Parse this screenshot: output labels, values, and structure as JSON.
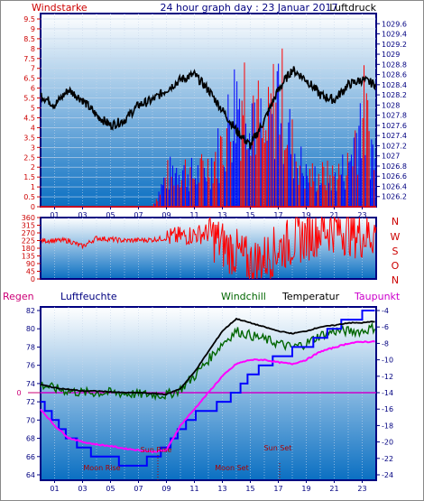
{
  "header": {
    "left_label": "Windstarke",
    "title": "24 hour graph day : 23 Januar 2017",
    "right_label": "Luftdruck"
  },
  "colors": {
    "frame": "#000080",
    "plot_top": "#ffffff",
    "plot_bottom": "#0a6fc2",
    "wind": "#ff0000",
    "gust_blue": "#0000ff",
    "pressure": "#000000",
    "temperature": "#000000",
    "windchill": "#006600",
    "dewpoint": "#ff00ff",
    "humidity": "#0000ff",
    "red_axis": "#cc0000",
    "blue_axis": "#000080"
  },
  "bottom_header": {
    "regen": "Regen",
    "luftfeuchte": "Luftfeuchte",
    "windchill": "Windchill",
    "temperatur": "Temperatur",
    "taupunkt": "Taupunkt"
  },
  "compass_labels": [
    "N",
    "W",
    "S",
    "O",
    "N"
  ],
  "annotations": {
    "sun_rise": "Sun Rise",
    "moon_rise": "Moon Rise",
    "moon_set": "Moon Set",
    "sun_set": "Sun Set"
  },
  "chart_data": [
    {
      "type": "line",
      "panel": "wind-pressure",
      "x_ticks": [
        "01",
        "03",
        "05",
        "07",
        "09",
        "11",
        "13",
        "15",
        "17",
        "19",
        "21",
        "23"
      ],
      "left_axis": {
        "ticks": [
          "0",
          "0.5",
          "1",
          "1.5",
          "2",
          "2.5",
          "3",
          "3.5",
          "4",
          "4.5",
          "5",
          "5.5",
          "6",
          "6.5",
          "7",
          "7.5",
          "8",
          "8.5",
          "9",
          "9.5"
        ],
        "ylim": [
          0,
          9.5
        ]
      },
      "right_axis": {
        "ticks": [
          "1026.2",
          "1026.4",
          "1026.6",
          "1026.8",
          "1027",
          "1027.2",
          "1027.4",
          "1027.6",
          "1027.8",
          "1028",
          "1028.2",
          "1028.4",
          "1028.6",
          "1028.8",
          "1029",
          "1029.2",
          "1029.4",
          "1029.6"
        ],
        "ylim": [
          1026.0,
          1029.8
        ]
      },
      "series": [
        {
          "name": "Luftdruck",
          "axis": "right",
          "x": [
            0,
            1,
            2,
            3,
            4,
            5,
            6,
            7,
            8,
            9,
            10,
            11,
            12,
            13,
            14,
            15,
            16,
            17,
            18,
            19,
            20,
            21,
            22,
            23,
            24
          ],
          "values": [
            1028.2,
            1028.0,
            1028.3,
            1028.1,
            1027.8,
            1027.6,
            1027.7,
            1028.0,
            1028.1,
            1028.3,
            1028.5,
            1028.6,
            1028.3,
            1027.9,
            1027.5,
            1027.2,
            1027.7,
            1028.3,
            1028.7,
            1028.5,
            1028.2,
            1028.1,
            1028.4,
            1028.5,
            1028.4
          ]
        },
        {
          "name": "Windstarke",
          "axis": "left",
          "x": [
            0,
            2,
            4,
            6,
            8,
            9,
            10,
            11,
            12,
            13,
            14,
            15,
            16,
            17,
            18,
            19,
            20,
            21,
            22,
            23,
            24
          ],
          "values": [
            0,
            0,
            0,
            0,
            0,
            1.5,
            2,
            1.5,
            2,
            3,
            5.5,
            6,
            3,
            6,
            3,
            1.5,
            1.5,
            1.5,
            2,
            5,
            2
          ]
        }
      ]
    },
    {
      "type": "scatter",
      "panel": "wind-direction",
      "y_ticks": [
        "360",
        "315",
        "270",
        "225",
        "180",
        "135",
        "90",
        "45",
        "0"
      ],
      "ylim": [
        0,
        360
      ],
      "series": [
        {
          "name": "",
          "x": [
            0,
            2,
            3,
            4,
            6,
            8,
            9,
            10,
            11,
            12,
            13,
            14,
            15,
            16,
            17,
            18,
            19,
            20,
            21,
            22,
            23,
            24
          ],
          "values": [
            225,
            225,
            190,
            240,
            225,
            230,
            240,
            250,
            260,
            270,
            200,
            150,
            90,
            120,
            180,
            220,
            250,
            290,
            300,
            280,
            260,
            270
          ]
        }
      ]
    },
    {
      "type": "line",
      "panel": "temperature-humidity",
      "x_ticks": [
        "01",
        "03",
        "05",
        "07",
        "09",
        "11",
        "13",
        "15",
        "17",
        "19",
        "21",
        "23"
      ],
      "left_axis": {
        "ticks": [
          "64",
          "66",
          "68",
          "70",
          "72",
          "74",
          "76",
          "78",
          "80",
          "82"
        ],
        "ylim": [
          64,
          82
        ]
      },
      "right_axis": {
        "ticks": [
          "-24",
          "-22",
          "-20",
          "-18",
          "-16",
          "-14",
          "-12",
          "-10",
          "-8",
          "-6",
          "-4"
        ],
        "ylim": [
          -24,
          -4
        ]
      },
      "regen_axis": {
        "ticks": [
          "0"
        ]
      },
      "series": [
        {
          "name": "Luftfeuchte",
          "axis": "left",
          "x": [
            0,
            1,
            2,
            3,
            4,
            5,
            6,
            7,
            8,
            9,
            10,
            11,
            12,
            13,
            14,
            15,
            16,
            17,
            18,
            19,
            20,
            21,
            22,
            23,
            24
          ],
          "values": [
            72,
            70,
            68,
            67,
            66,
            66,
            65,
            65,
            66,
            67,
            69,
            70.5,
            71,
            72,
            73,
            75,
            76,
            77,
            77.5,
            78,
            79,
            80,
            81,
            81.5,
            81.5
          ]
        },
        {
          "name": "Temperatur",
          "axis": "right",
          "x": [
            0,
            1,
            2,
            3,
            4,
            5,
            6,
            7,
            8,
            9,
            10,
            11,
            12,
            13,
            14,
            15,
            16,
            17,
            18,
            19,
            20,
            21,
            22,
            23,
            24
          ],
          "values": [
            -13,
            -13.4,
            -13.6,
            -13.8,
            -13.8,
            -13.9,
            -14,
            -14,
            -14.1,
            -14.2,
            -13.5,
            -11.5,
            -9,
            -6.5,
            -5,
            -5.5,
            -6,
            -6.5,
            -6.8,
            -6.5,
            -6,
            -5.8,
            -5.5,
            -5.5,
            -5.3
          ]
        },
        {
          "name": "Windchill",
          "axis": "right",
          "x": [
            0,
            1,
            2,
            3,
            4,
            5,
            6,
            7,
            8,
            9,
            10,
            11,
            12,
            13,
            14,
            15,
            16,
            17,
            18,
            19,
            20,
            21,
            22,
            23,
            24
          ],
          "values": [
            -13,
            -13.5,
            -13.8,
            -14,
            -14,
            -14,
            -14.1,
            -14.2,
            -14.2,
            -14.3,
            -13.6,
            -12,
            -10,
            -8,
            -6.5,
            -7,
            -7.5,
            -8,
            -8.5,
            -8,
            -7,
            -6.5,
            -6.5,
            -6.5,
            -6
          ]
        },
        {
          "name": "Taupunkt",
          "axis": "right",
          "x": [
            0,
            1,
            2,
            3,
            4,
            5,
            6,
            7,
            8,
            9,
            10,
            11,
            12,
            13,
            14,
            15,
            16,
            17,
            18,
            19,
            20,
            21,
            22,
            23,
            24
          ],
          "values": [
            -16,
            -18,
            -19.5,
            -20,
            -20.3,
            -20.5,
            -20.8,
            -21,
            -21.2,
            -21,
            -18,
            -16,
            -14,
            -12,
            -10.5,
            -10,
            -10,
            -10.3,
            -10.5,
            -10,
            -9,
            -8.5,
            -8,
            -7.8,
            -7.8
          ]
        }
      ]
    }
  ]
}
